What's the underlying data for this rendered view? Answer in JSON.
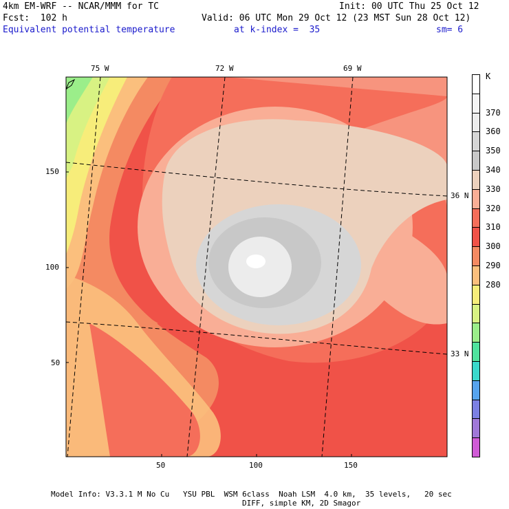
{
  "header": {
    "model": "4km EM-WRF -- NCAR/MMM for TC",
    "forecast": "Fcst:  102 h",
    "init": "Init: 00 UTC Thu 25 Oct 12",
    "valid": "Valid: 06 UTC Mon 29 Oct 12 (23 MST Sun 28 Oct 12)",
    "field": "Equivalent potential temperature",
    "level": "at k-index =  35",
    "smoothing": "sm= 6"
  },
  "map": {
    "lon_labels": [
      "75 W",
      "72 W",
      "69 W"
    ],
    "lat_labels": [
      "36 N",
      "33 N"
    ],
    "x_ticks": [
      "50",
      "100",
      "150"
    ],
    "y_ticks": [
      "150",
      "100",
      "50"
    ]
  },
  "colorbar": {
    "unit": "K",
    "levels": [
      "370",
      "360",
      "350",
      "340",
      "330",
      "320",
      "310",
      "300",
      "290",
      "280"
    ],
    "colors": [
      "#ffffff",
      "#f4f4f4",
      "#ececec",
      "#d6d6d6",
      "#c8c8c8",
      "#ecd1bd",
      "#f9ae96",
      "#f56e5a",
      "#f05248",
      "#f48a62",
      "#fbbf7d",
      "#f7ed7a",
      "#d8f283",
      "#9bee8a",
      "#4fe39e",
      "#3ad9cc",
      "#57a4ee",
      "#7c80e4",
      "#a078d8",
      "#d05bd6"
    ]
  },
  "footer": {
    "line1": "Model Info: V3.3.1 M No Cu   YSU PBL  WSM 6class  Noah LSM  4.0 km,  35 levels,   20 sec",
    "line2": "DIFF, simple KM, 2D Smagor"
  }
}
